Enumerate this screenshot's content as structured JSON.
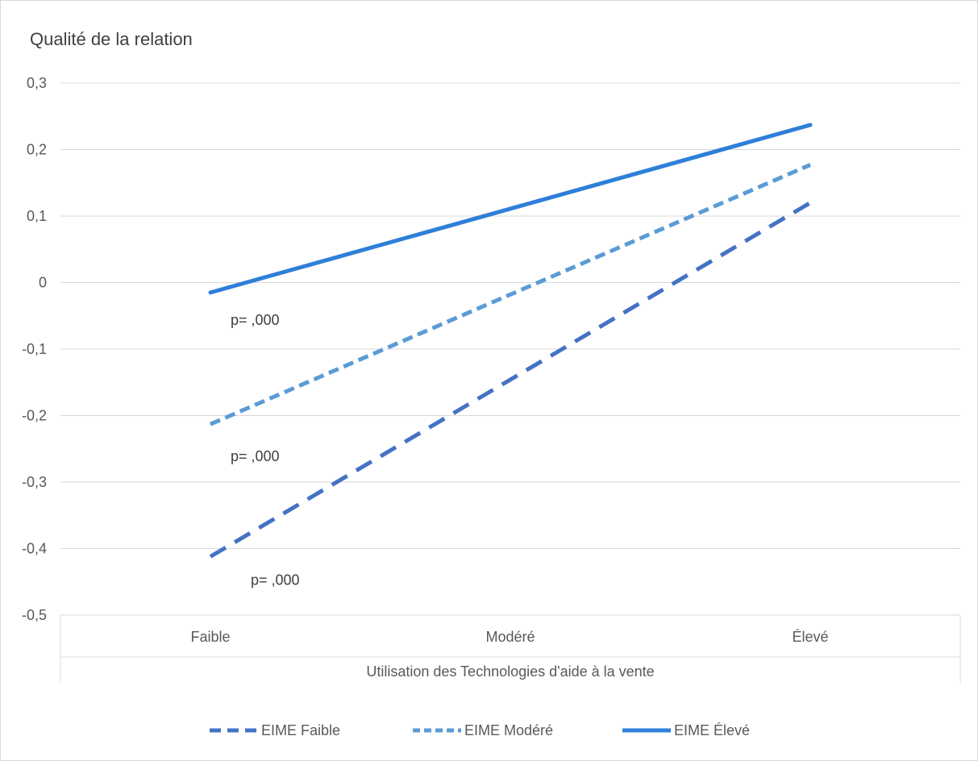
{
  "chart_data": {
    "type": "line",
    "title": "Qualité de la relation",
    "xlabel": "Utilisation des Technologies d'aide à la vente",
    "categories": [
      "Faible",
      "Modéré",
      "Élevé"
    ],
    "ylim": [
      -0.5,
      0.3
    ],
    "yticks": [
      "0,3",
      "0,2",
      "0,1",
      "0",
      "-0,1",
      "-0,2",
      "-0,3",
      "-0,4",
      "-0,5"
    ],
    "grid": true,
    "legend_position": "bottom",
    "series": [
      {
        "name": "EIME Faible",
        "values": [
          -0.412,
          -0.146,
          0.12
        ],
        "color": "#4472c4",
        "dash": "long-dash"
      },
      {
        "name": "EIME Modéré",
        "values": [
          -0.213,
          -0.018,
          0.177
        ],
        "color": "#5b9bd5",
        "dash": "short-dash"
      },
      {
        "name": "EIME Élevé",
        "values": [
          -0.015,
          0.111,
          0.237
        ],
        "color": "#2e7fd8",
        "dash": "solid"
      }
    ],
    "annotations": [
      {
        "text": "p=  ,000",
        "series": "EIME Élevé"
      },
      {
        "text": "p=  ,000",
        "series": "EIME Modéré"
      },
      {
        "text": "p=  ,000",
        "series": "EIME Faible"
      }
    ]
  }
}
